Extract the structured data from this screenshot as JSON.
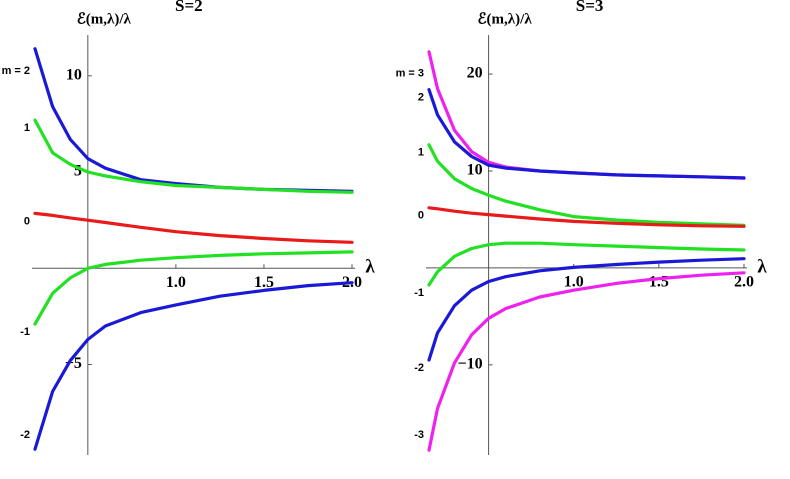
{
  "chart_data": [
    {
      "type": "line",
      "title": "S=2",
      "y_label": "ℰ(m,λ)/λ",
      "x_label": "λ",
      "x": [
        0.2,
        0.3,
        0.4,
        0.5,
        0.6,
        0.8,
        1.0,
        1.25,
        1.5,
        1.75,
        2.0
      ],
      "series": [
        {
          "name": "m = 2",
          "color": "#1a1ad6",
          "values": [
            11.4,
            8.4,
            6.7,
            5.7,
            5.2,
            4.6,
            4.4,
            4.2,
            4.1,
            4.05,
            4.0
          ]
        },
        {
          "name": "1",
          "color": "#22e022",
          "values": [
            7.7,
            6.0,
            5.4,
            5.0,
            4.8,
            4.5,
            4.3,
            4.2,
            4.1,
            4.0,
            3.95
          ]
        },
        {
          "name": "0",
          "color": "#e81a1a",
          "values": [
            2.85,
            2.75,
            2.62,
            2.5,
            2.38,
            2.13,
            1.9,
            1.7,
            1.55,
            1.43,
            1.35
          ]
        },
        {
          "name": "-1",
          "color": "#22e022",
          "values": [
            -2.9,
            -1.3,
            -0.5,
            0.0,
            0.2,
            0.42,
            0.55,
            0.67,
            0.75,
            0.8,
            0.85
          ]
        },
        {
          "name": "-2",
          "color": "#1a1ad6",
          "values": [
            -9.4,
            -6.4,
            -4.8,
            -3.7,
            -3.0,
            -2.3,
            -1.9,
            -1.45,
            -1.15,
            -0.9,
            -0.75
          ]
        }
      ],
      "xlim": [
        0.2,
        2.0
      ],
      "ylim": [
        -9.7,
        11.6
      ],
      "axes_origin": [
        0.5,
        0
      ],
      "xticks": [
        {
          "value": 1.0,
          "label": "1.0"
        },
        {
          "value": 1.5,
          "label": "1.5"
        },
        {
          "value": 2.0,
          "label": "2.0"
        }
      ],
      "yticks": [
        10,
        5,
        {
          "value": -5,
          "label": "−5"
        }
      ]
    },
    {
      "type": "line",
      "title": "S=3",
      "y_label": "ℰ(m,λ)/λ",
      "x_label": "λ",
      "x": [
        0.15,
        0.2,
        0.3,
        0.4,
        0.5,
        0.6,
        0.8,
        1.0,
        1.25,
        1.5,
        1.75,
        2.0
      ],
      "series": [
        {
          "name": "m = 3",
          "color": "#ee22ee",
          "values": [
            22.3,
            18.5,
            14.2,
            12.0,
            10.9,
            10.4,
            10.0,
            9.8,
            9.6,
            9.5,
            9.4,
            9.25
          ]
        },
        {
          "name": "2",
          "color": "#1a1ad6",
          "values": [
            18.4,
            15.8,
            13.0,
            11.5,
            10.6,
            10.3,
            10.0,
            9.8,
            9.6,
            9.5,
            9.4,
            9.3
          ]
        },
        {
          "name": "1",
          "color": "#22e022",
          "values": [
            12.7,
            11.0,
            9.2,
            8.2,
            7.5,
            6.9,
            6.0,
            5.3,
            4.95,
            4.7,
            4.55,
            4.4
          ]
        },
        {
          "name": "0",
          "color": "#e81a1a",
          "values": [
            6.2,
            6.1,
            5.85,
            5.65,
            5.5,
            5.35,
            5.05,
            4.8,
            4.6,
            4.45,
            4.35,
            4.3
          ]
        },
        {
          "name": "-1",
          "color": "#22e022",
          "values": [
            -1.75,
            -0.4,
            1.2,
            2.0,
            2.4,
            2.55,
            2.55,
            2.4,
            2.25,
            2.1,
            1.95,
            1.85
          ]
        },
        {
          "name": "-2",
          "color": "#1a1ad6",
          "values": [
            -9.5,
            -6.7,
            -3.9,
            -2.3,
            -1.4,
            -0.9,
            -0.3,
            0.05,
            0.35,
            0.6,
            0.8,
            0.95
          ]
        },
        {
          "name": "-3",
          "color": "#ee22ee",
          "values": [
            -18.8,
            -14.5,
            -9.8,
            -6.9,
            -5.2,
            -4.2,
            -3.0,
            -2.3,
            -1.6,
            -1.1,
            -0.75,
            -0.5
          ]
        }
      ],
      "xlim": [
        0.15,
        2.0
      ],
      "ylim": [
        -19.3,
        23
      ],
      "axes_origin": [
        0.5,
        0
      ],
      "xticks": [
        {
          "value": 1.0,
          "label": "1.0"
        },
        {
          "value": 1.5,
          "label": "1.5"
        },
        {
          "value": 2.0,
          "label": "2.0"
        }
      ],
      "yticks": [
        20,
        10,
        {
          "value": -10,
          "label": "−10"
        }
      ]
    }
  ]
}
